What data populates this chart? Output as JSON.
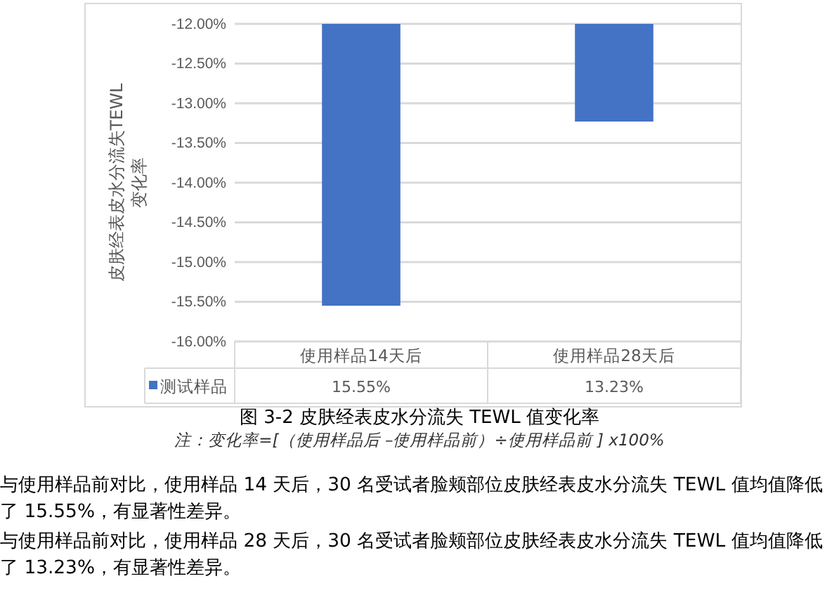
{
  "chart_data": {
    "type": "bar",
    "title": "图 3-2 皮肤经表皮水分流失 TEWL 值变化率",
    "ylabel": "皮肤经表皮水分流失TEWL 变化率",
    "categories": [
      "使用样品14天后",
      "使用样品28天后"
    ],
    "series": [
      {
        "name": "测试样品",
        "color": "#4472c4",
        "values": [
          -15.55,
          -13.23
        ]
      }
    ],
    "ylim": [
      -16,
      -12
    ],
    "yticks": [
      {
        "value": -16,
        "label": "-16.00%"
      },
      {
        "value": -15.5,
        "label": "-15.50%"
      },
      {
        "value": -15,
        "label": "-15.00%"
      },
      {
        "value": -14.5,
        "label": "-14.50%"
      },
      {
        "value": -14,
        "label": "-14.00%"
      },
      {
        "value": -13.5,
        "label": "-13.50%"
      },
      {
        "value": -13,
        "label": "-13.00%"
      },
      {
        "value": -12.5,
        "label": "-12.50%"
      },
      {
        "value": -12,
        "label": "-12.00%"
      }
    ],
    "grid": "y",
    "legend": "bottom",
    "annotations": [
      "15.55%",
      "13.23%",
      "注：变化率=[（使用样品后 –使用样品前）÷使用样品前 ] x100%",
      "与使用样品前对比，使用样品 14 天后，30 名受试者脸颊部位皮肤经表皮水分流失 TEWL 值均值降低了 15.55%，有显著性差异。",
      "与使用样品前对比，使用样品 28 天后，30 名受试者脸颊部位皮肤经表皮水分流失 TEWL 值均值降低了 13.23%，有显著性差异。"
    ]
  }
}
